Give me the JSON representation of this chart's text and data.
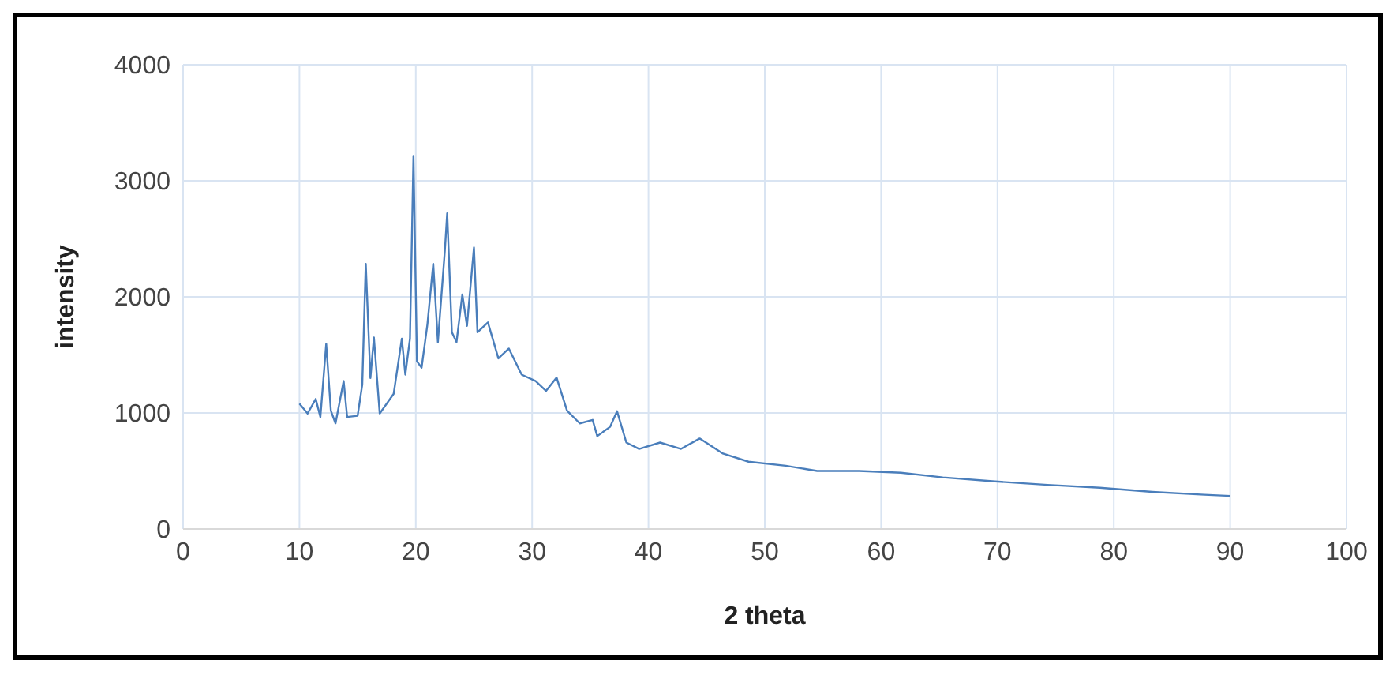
{
  "chart_data": {
    "type": "line",
    "xlabel": "2 theta",
    "ylabel": "intensity",
    "x": [
      10,
      10.7,
      11.4,
      11.8,
      12.3,
      12.7,
      13.1,
      13.8,
      14.1,
      15.0,
      15.4,
      15.7,
      16.1,
      16.4,
      16.9,
      18.1,
      18.8,
      19.1,
      19.5,
      19.8,
      20.1,
      20.5,
      21.0,
      21.5,
      21.9,
      22.5,
      22.7,
      23.1,
      23.5,
      24.0,
      24.4,
      25.0,
      25.3,
      26.2,
      27.1,
      28.0,
      29.1,
      30.3,
      31.2,
      32.1,
      33.0,
      34.1,
      35.2,
      35.6,
      36.7,
      37.3,
      38.1,
      39.2,
      41.0,
      42.8,
      44.4,
      46.4,
      48.6,
      51.8,
      54.5,
      58.1,
      61.7,
      65.3,
      69.8,
      74.3,
      78.8,
      83.3,
      87.8,
      90
    ],
    "series": [
      {
        "color": "#4a7ebb",
        "values": [
          1080,
          995,
          1120,
          965,
          1595,
          1020,
          910,
          1275,
          965,
          975,
          1245,
          2285,
          1300,
          1650,
          995,
          1165,
          1640,
          1330,
          1640,
          3215,
          1445,
          1390,
          1765,
          2285,
          1610,
          2400,
          2720,
          1695,
          1610,
          2020,
          1750,
          2425,
          1695,
          1780,
          1470,
          1555,
          1330,
          1275,
          1190,
          1305,
          1020,
          910,
          940,
          800,
          880,
          1015,
          745,
          690,
          745,
          690,
          780,
          650,
          580,
          545,
          500,
          500,
          485,
          445,
          410,
          380,
          355,
          320,
          295,
          285
        ]
      }
    ],
    "xlim": [
      0,
      100
    ],
    "xticks": [
      0,
      10,
      20,
      30,
      40,
      50,
      60,
      70,
      80,
      90,
      100
    ],
    "ylim": [
      0,
      4000
    ],
    "yticks": [
      0,
      1000,
      2000,
      3000,
      4000
    ],
    "grid": true,
    "legend": false,
    "marker": "none",
    "line_style": "solid"
  }
}
